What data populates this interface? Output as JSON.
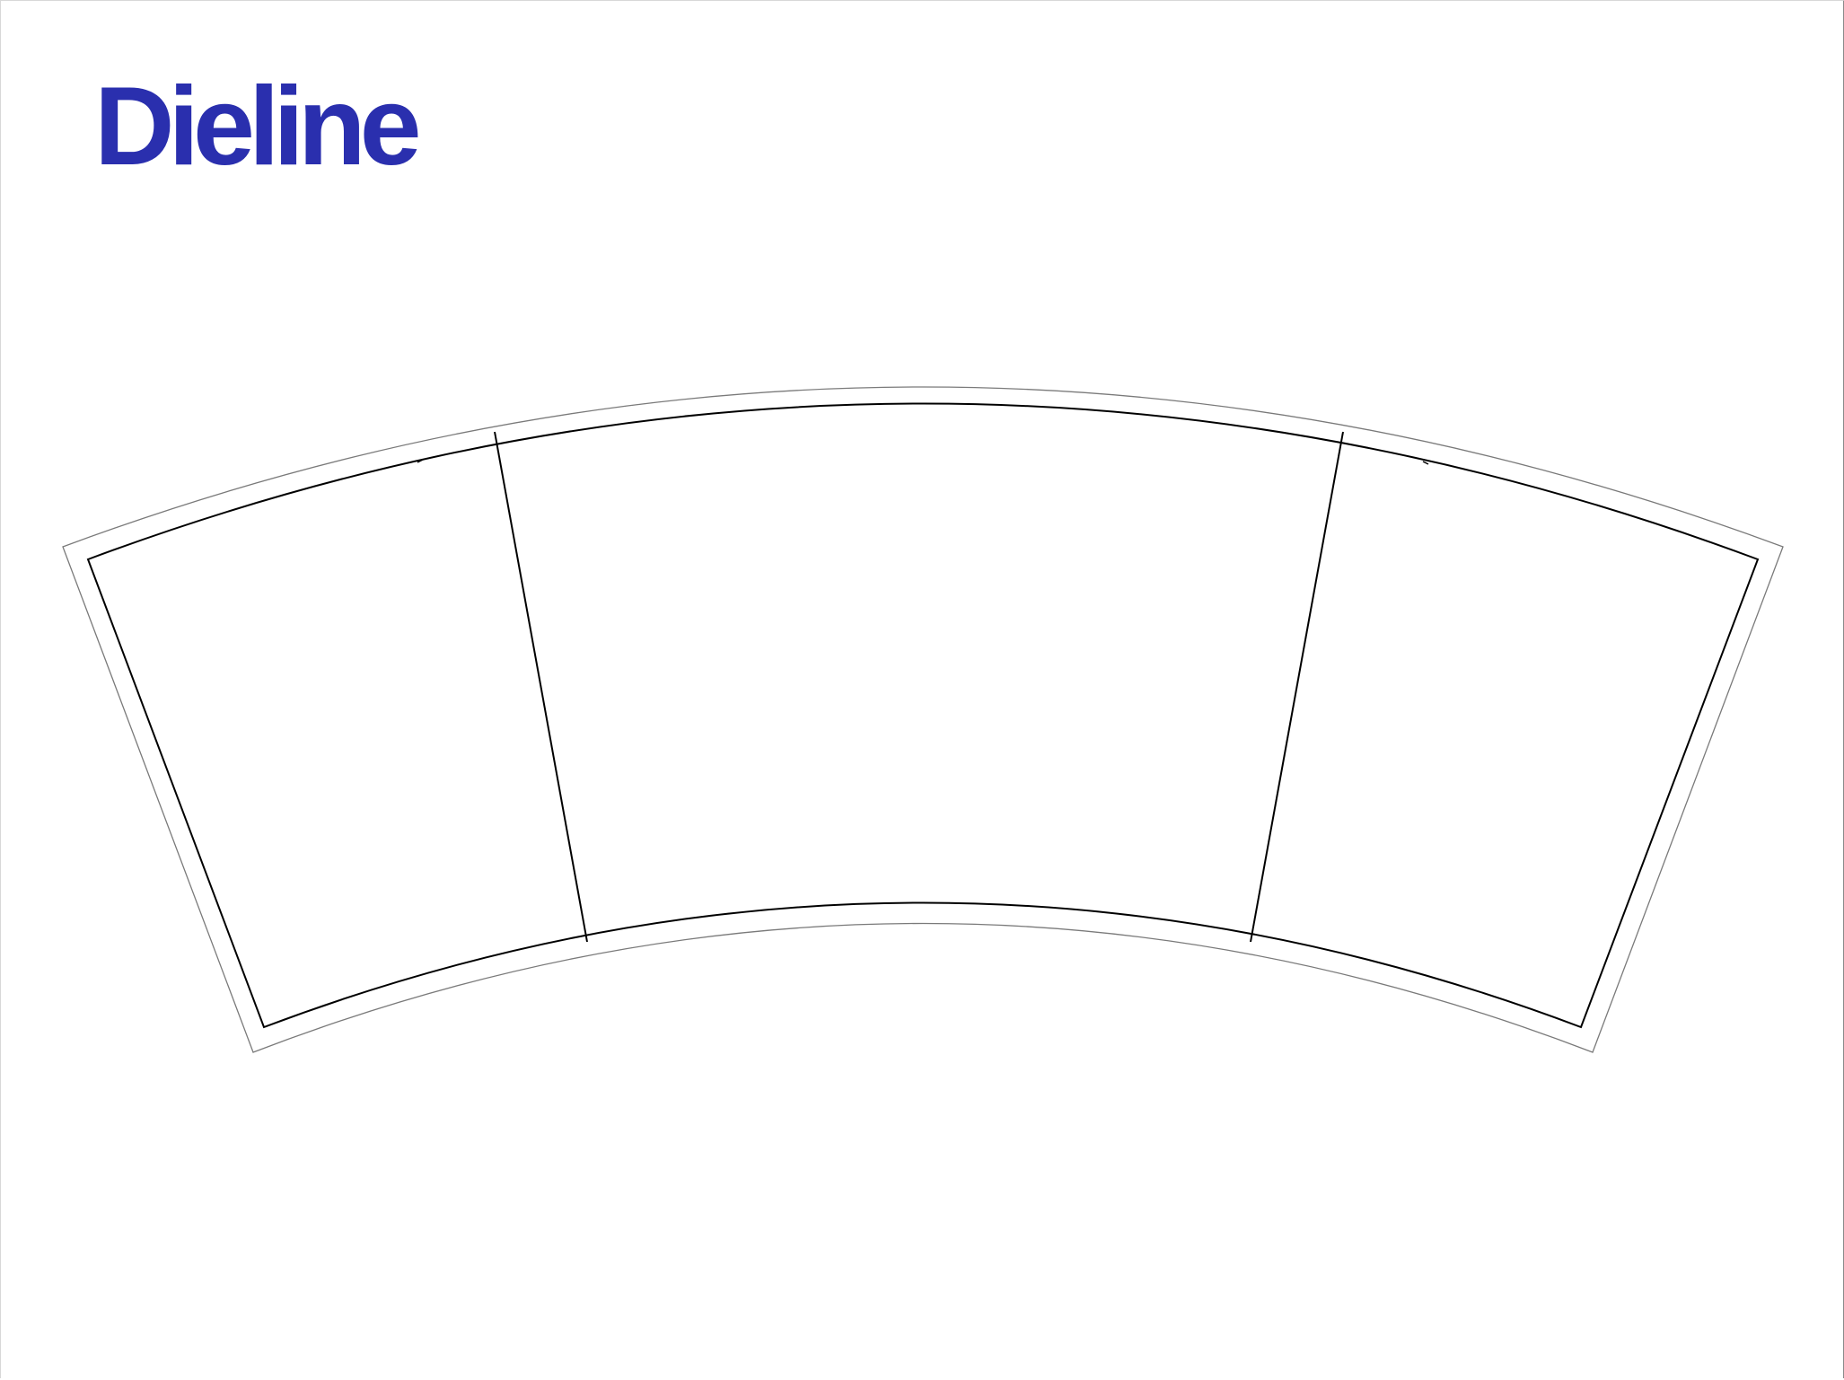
{
  "brand": {
    "title": "Dieline"
  },
  "colors": {
    "brand": "#2a2fae",
    "cut_line": "#000000",
    "bleed_line": "#7a7a7a",
    "page_border": "#8a8a8a"
  }
}
